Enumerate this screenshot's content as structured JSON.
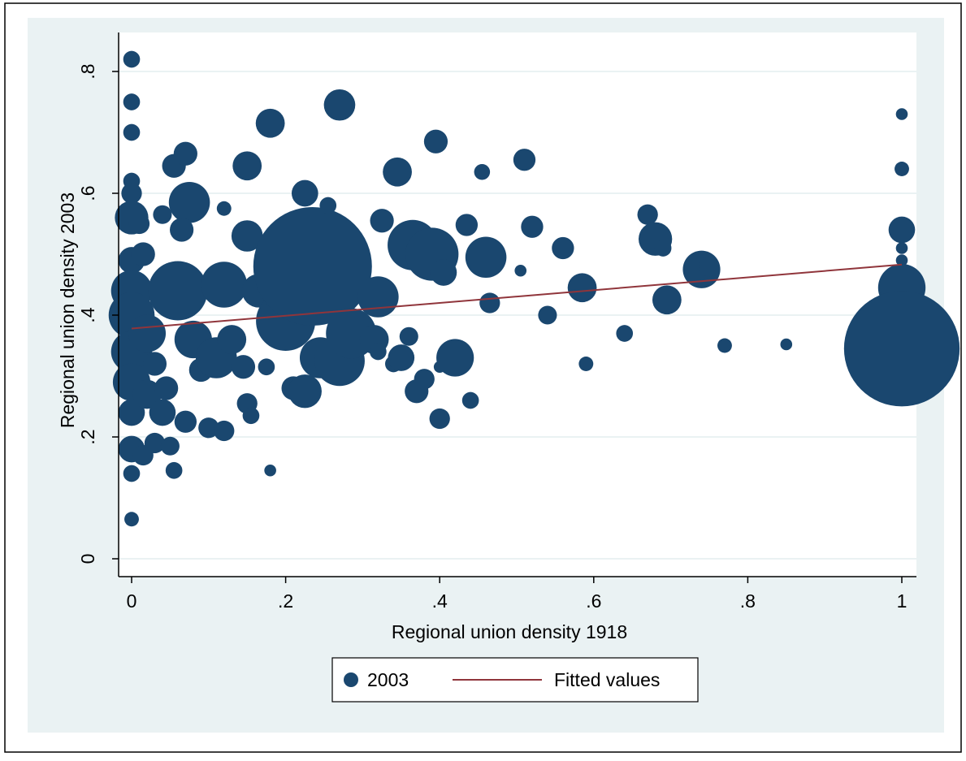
{
  "chart_data": {
    "type": "scatter",
    "title": "",
    "xlabel": "Regional union density 1918",
    "ylabel": "Regional union density 2003",
    "xlim": [
      0,
      1
    ],
    "ylim": [
      0,
      0.8
    ],
    "x_ticks": [
      0,
      0.2,
      0.4,
      0.6,
      0.8,
      1
    ],
    "x_tick_labels": [
      "0",
      ".2",
      ".4",
      ".6",
      ".8",
      "1"
    ],
    "y_ticks": [
      0,
      0.2,
      0.4,
      0.6,
      0.8
    ],
    "y_tick_labels": [
      "0",
      ".2",
      ".4",
      ".6",
      ".8"
    ],
    "grid": "horizontal",
    "legend_position": "bottom",
    "legend": [
      "2003",
      "Fitted values"
    ],
    "colors": {
      "marker": "#1a476f",
      "fit_line": "#90353b",
      "outer_background": "#eaf2f3",
      "plot_background": "#ffffff",
      "grid": "#eaf2f3"
    },
    "series": [
      {
        "name": "2003",
        "kind": "weighted-scatter",
        "points": [
          {
            "x": 0.0,
            "y": 0.82,
            "w": 2
          },
          {
            "x": 0.0,
            "y": 0.75,
            "w": 2
          },
          {
            "x": 0.0,
            "y": 0.7,
            "w": 2
          },
          {
            "x": 0.0,
            "y": 0.62,
            "w": 2
          },
          {
            "x": 0.0,
            "y": 0.6,
            "w": 3
          },
          {
            "x": 0.0,
            "y": 0.56,
            "w": 8
          },
          {
            "x": 0.0,
            "y": 0.49,
            "w": 5
          },
          {
            "x": 0.0,
            "y": 0.44,
            "w": 12
          },
          {
            "x": 0.0,
            "y": 0.4,
            "w": 15
          },
          {
            "x": 0.0,
            "y": 0.34,
            "w": 12
          },
          {
            "x": 0.0,
            "y": 0.29,
            "w": 10
          },
          {
            "x": 0.0,
            "y": 0.24,
            "w": 5
          },
          {
            "x": 0.0,
            "y": 0.18,
            "w": 5
          },
          {
            "x": 0.0,
            "y": 0.14,
            "w": 2
          },
          {
            "x": 0.0,
            "y": 0.065,
            "w": 1.5
          },
          {
            "x": 0.01,
            "y": 0.55,
            "w": 3
          },
          {
            "x": 0.015,
            "y": 0.5,
            "w": 4
          },
          {
            "x": 0.02,
            "y": 0.37,
            "w": 10
          },
          {
            "x": 0.02,
            "y": 0.27,
            "w": 6
          },
          {
            "x": 0.015,
            "y": 0.17,
            "w": 3
          },
          {
            "x": 0.03,
            "y": 0.19,
            "w": 3
          },
          {
            "x": 0.03,
            "y": 0.32,
            "w": 4
          },
          {
            "x": 0.04,
            "y": 0.565,
            "w": 2.5
          },
          {
            "x": 0.04,
            "y": 0.24,
            "w": 5
          },
          {
            "x": 0.045,
            "y": 0.28,
            "w": 4
          },
          {
            "x": 0.05,
            "y": 0.185,
            "w": 2.5
          },
          {
            "x": 0.055,
            "y": 0.145,
            "w": 2
          },
          {
            "x": 0.055,
            "y": 0.645,
            "w": 4
          },
          {
            "x": 0.07,
            "y": 0.665,
            "w": 4
          },
          {
            "x": 0.07,
            "y": 0.225,
            "w": 3.5
          },
          {
            "x": 0.075,
            "y": 0.585,
            "w": 12
          },
          {
            "x": 0.065,
            "y": 0.54,
            "w": 4
          },
          {
            "x": 0.06,
            "y": 0.44,
            "w": 25
          },
          {
            "x": 0.08,
            "y": 0.36,
            "w": 10
          },
          {
            "x": 0.09,
            "y": 0.31,
            "w": 4
          },
          {
            "x": 0.1,
            "y": 0.215,
            "w": 3
          },
          {
            "x": 0.11,
            "y": 0.33,
            "w": 12
          },
          {
            "x": 0.12,
            "y": 0.575,
            "w": 1.5
          },
          {
            "x": 0.12,
            "y": 0.21,
            "w": 3
          },
          {
            "x": 0.12,
            "y": 0.45,
            "w": 15
          },
          {
            "x": 0.13,
            "y": 0.36,
            "w": 6
          },
          {
            "x": 0.145,
            "y": 0.315,
            "w": 4
          },
          {
            "x": 0.15,
            "y": 0.645,
            "w": 6
          },
          {
            "x": 0.15,
            "y": 0.53,
            "w": 7
          },
          {
            "x": 0.15,
            "y": 0.255,
            "w": 3
          },
          {
            "x": 0.155,
            "y": 0.235,
            "w": 2
          },
          {
            "x": 0.165,
            "y": 0.44,
            "w": 8
          },
          {
            "x": 0.18,
            "y": 0.715,
            "w": 6
          },
          {
            "x": 0.18,
            "y": 0.145,
            "w": 1
          },
          {
            "x": 0.175,
            "y": 0.315,
            "w": 2
          },
          {
            "x": 0.2,
            "y": 0.39,
            "w": 25
          },
          {
            "x": 0.21,
            "y": 0.28,
            "w": 4
          },
          {
            "x": 0.225,
            "y": 0.6,
            "w": 5
          },
          {
            "x": 0.225,
            "y": 0.275,
            "w": 8
          },
          {
            "x": 0.235,
            "y": 0.48,
            "w": 100
          },
          {
            "x": 0.245,
            "y": 0.33,
            "w": 12
          },
          {
            "x": 0.255,
            "y": 0.58,
            "w": 2
          },
          {
            "x": 0.27,
            "y": 0.745,
            "w": 7
          },
          {
            "x": 0.27,
            "y": 0.325,
            "w": 18
          },
          {
            "x": 0.285,
            "y": 0.37,
            "w": 18
          },
          {
            "x": 0.315,
            "y": 0.36,
            "w": 6
          },
          {
            "x": 0.32,
            "y": 0.34,
            "w": 2
          },
          {
            "x": 0.32,
            "y": 0.43,
            "w": 12
          },
          {
            "x": 0.325,
            "y": 0.555,
            "w": 4
          },
          {
            "x": 0.34,
            "y": 0.32,
            "w": 2
          },
          {
            "x": 0.345,
            "y": 0.635,
            "w": 6
          },
          {
            "x": 0.35,
            "y": 0.33,
            "w": 5
          },
          {
            "x": 0.36,
            "y": 0.365,
            "w": 2.5
          },
          {
            "x": 0.365,
            "y": 0.515,
            "w": 18
          },
          {
            "x": 0.37,
            "y": 0.275,
            "w": 4
          },
          {
            "x": 0.38,
            "y": 0.295,
            "w": 3
          },
          {
            "x": 0.39,
            "y": 0.5,
            "w": 20
          },
          {
            "x": 0.395,
            "y": 0.685,
            "w": 4
          },
          {
            "x": 0.4,
            "y": 0.23,
            "w": 3
          },
          {
            "x": 0.4,
            "y": 0.315,
            "w": 1
          },
          {
            "x": 0.405,
            "y": 0.47,
            "w": 5
          },
          {
            "x": 0.42,
            "y": 0.33,
            "w": 10
          },
          {
            "x": 0.435,
            "y": 0.548,
            "w": 3.5
          },
          {
            "x": 0.44,
            "y": 0.26,
            "w": 2
          },
          {
            "x": 0.455,
            "y": 0.635,
            "w": 1.8
          },
          {
            "x": 0.46,
            "y": 0.495,
            "w": 12
          },
          {
            "x": 0.465,
            "y": 0.42,
            "w": 3
          },
          {
            "x": 0.505,
            "y": 0.473,
            "w": 1
          },
          {
            "x": 0.51,
            "y": 0.655,
            "w": 3.5
          },
          {
            "x": 0.52,
            "y": 0.545,
            "w": 3.5
          },
          {
            "x": 0.54,
            "y": 0.4,
            "w": 2.5
          },
          {
            "x": 0.56,
            "y": 0.51,
            "w": 3.5
          },
          {
            "x": 0.585,
            "y": 0.445,
            "w": 6
          },
          {
            "x": 0.59,
            "y": 0.32,
            "w": 1.5
          },
          {
            "x": 0.64,
            "y": 0.37,
            "w": 2
          },
          {
            "x": 0.67,
            "y": 0.565,
            "w": 3
          },
          {
            "x": 0.68,
            "y": 0.525,
            "w": 8
          },
          {
            "x": 0.69,
            "y": 0.51,
            "w": 2
          },
          {
            "x": 0.695,
            "y": 0.425,
            "w": 6
          },
          {
            "x": 0.74,
            "y": 0.475,
            "w": 10
          },
          {
            "x": 0.75,
            "y": 0.48,
            "w": 3
          },
          {
            "x": 0.77,
            "y": 0.35,
            "w": 1.5
          },
          {
            "x": 0.85,
            "y": 0.352,
            "w": 1
          },
          {
            "x": 1.0,
            "y": 0.73,
            "w": 1
          },
          {
            "x": 1.0,
            "y": 0.64,
            "w": 1.5
          },
          {
            "x": 1.0,
            "y": 0.54,
            "w": 5
          },
          {
            "x": 1.0,
            "y": 0.51,
            "w": 1
          },
          {
            "x": 1.0,
            "y": 0.49,
            "w": 1
          },
          {
            "x": 1.0,
            "y": 0.445,
            "w": 16
          },
          {
            "x": 1.0,
            "y": 0.345,
            "w": 95
          }
        ]
      },
      {
        "name": "Fitted values",
        "kind": "line",
        "x": [
          0,
          1
        ],
        "y": [
          0.378,
          0.483
        ]
      }
    ]
  }
}
